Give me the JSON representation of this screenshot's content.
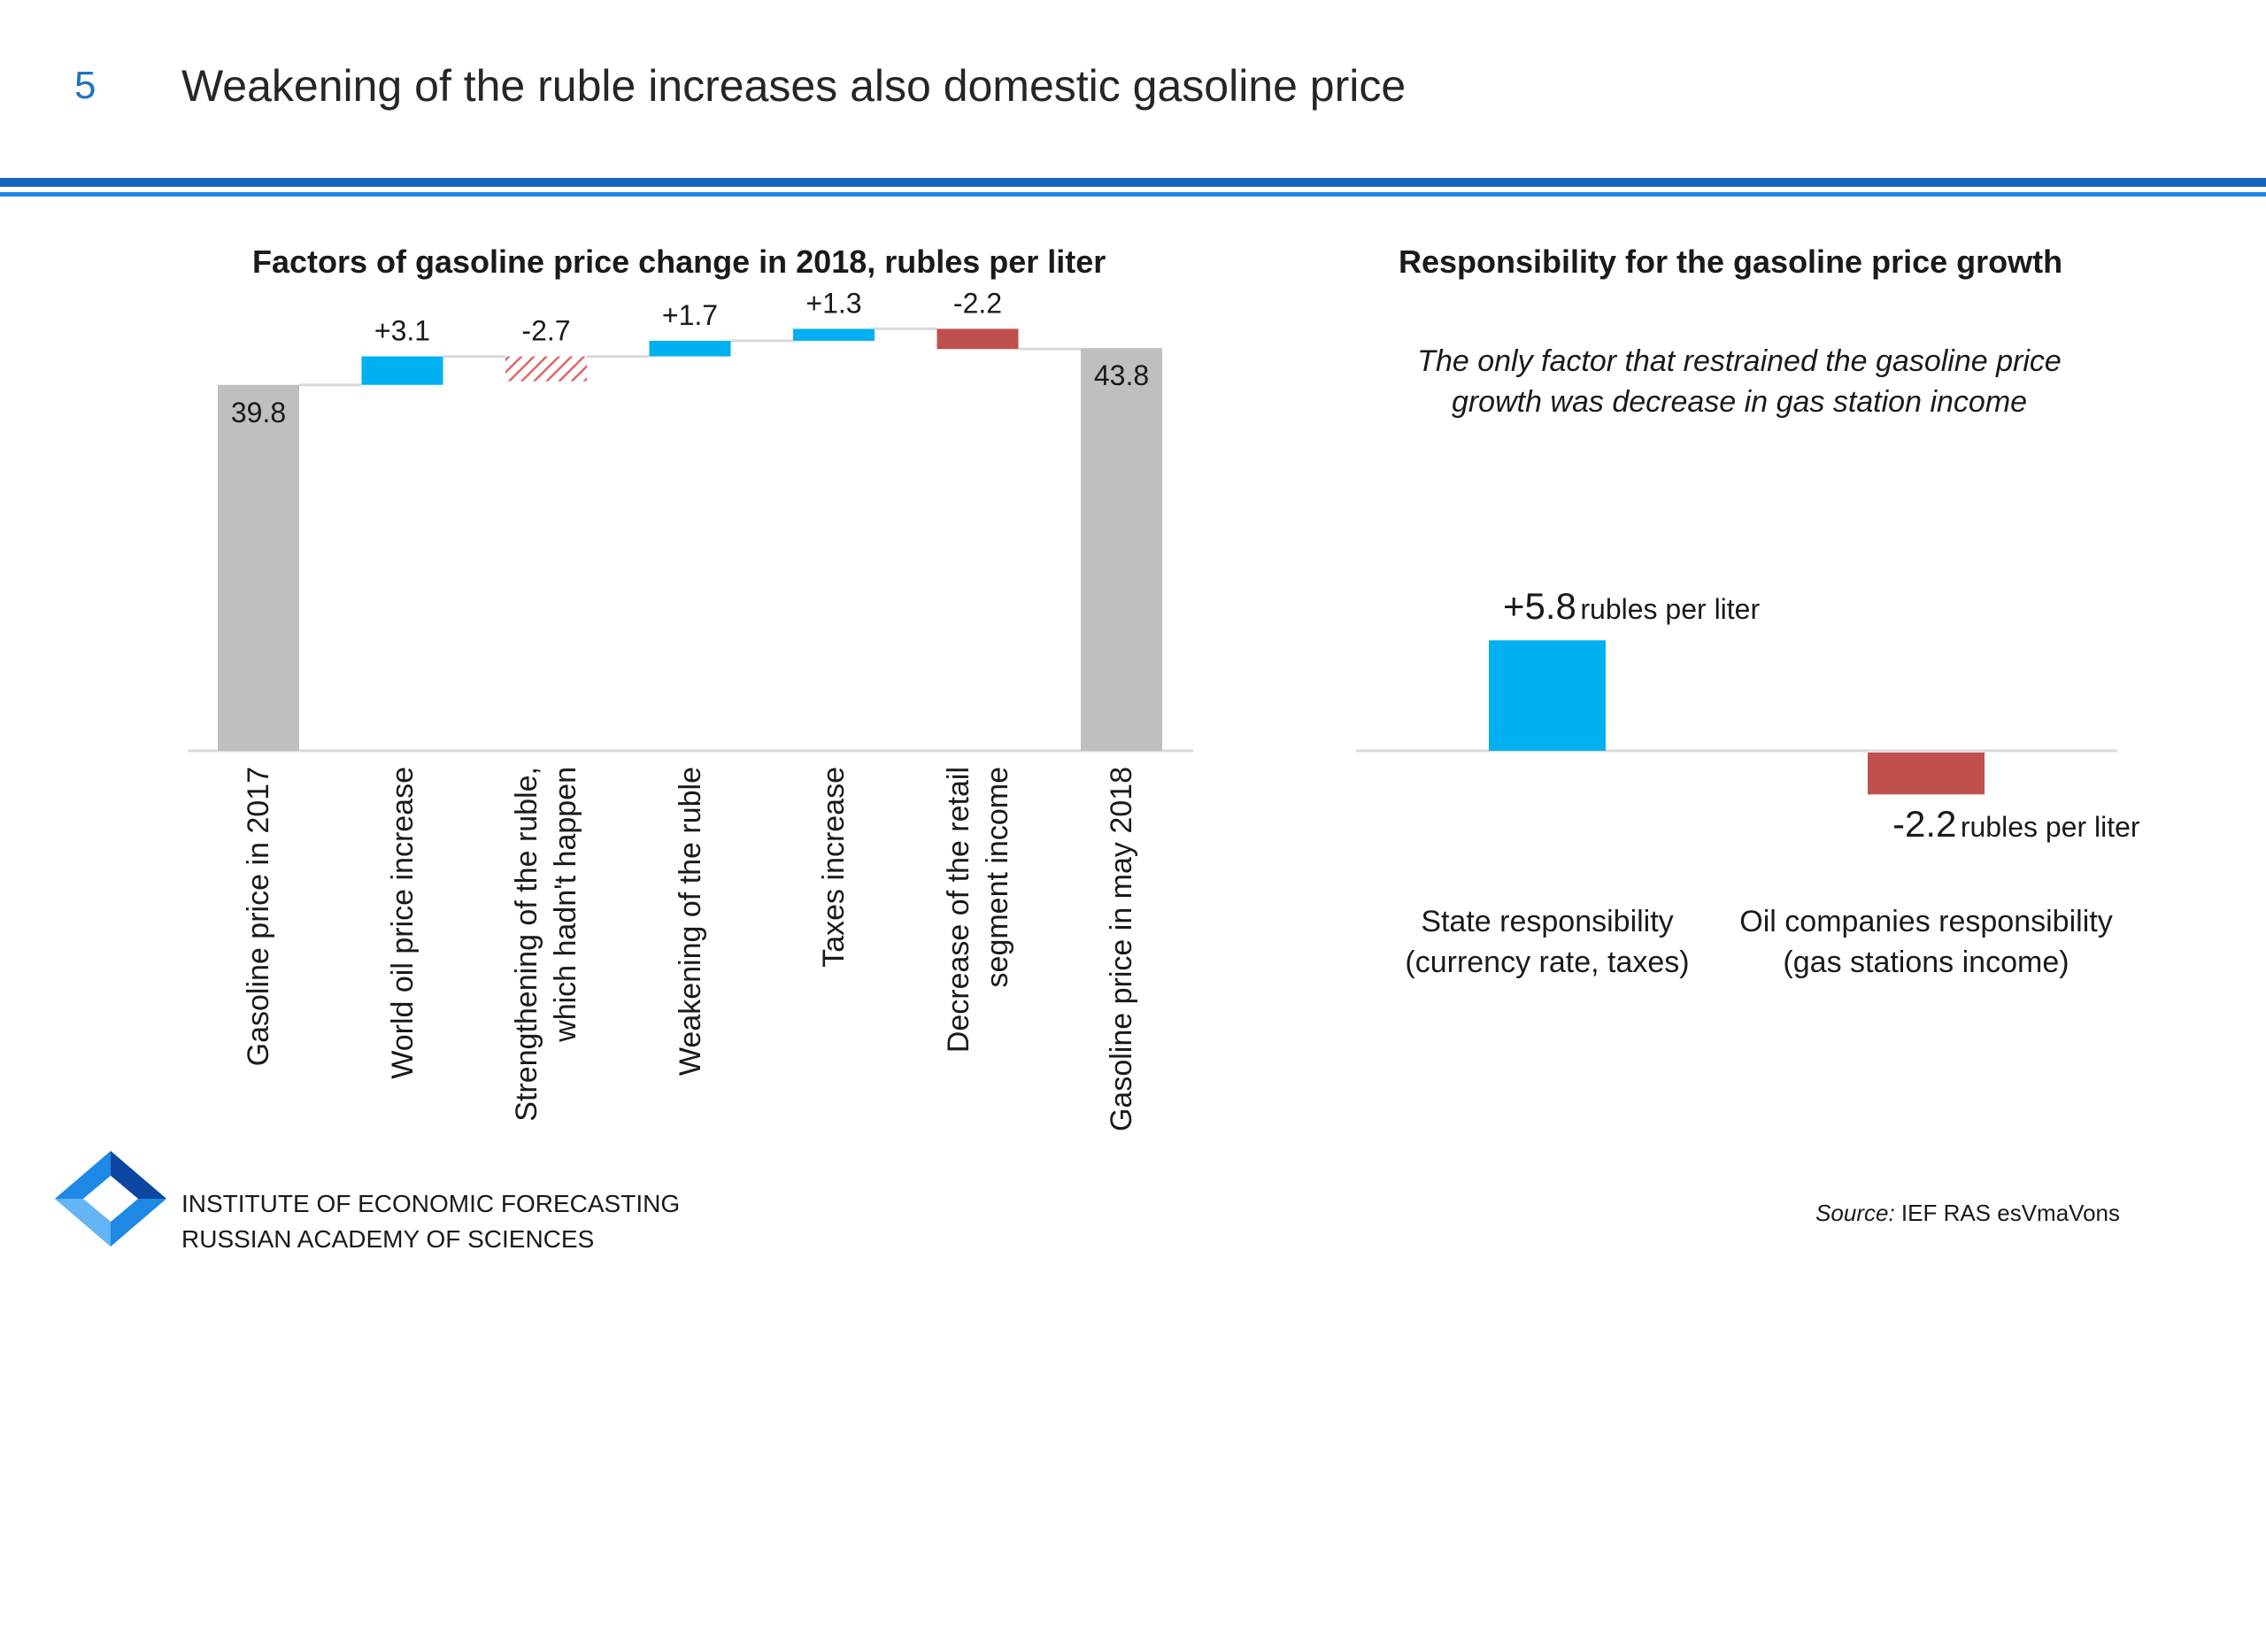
{
  "slide": {
    "number": "5",
    "title": "Weakening of the ruble increases also domestic gasoline price"
  },
  "left_panel": {
    "title": "Factors of gasoline price change in 2018, rubles per liter"
  },
  "right_panel": {
    "title": "Responsibility for the gasoline price growth",
    "note_line1": "The only factor that restrained the gasoline price",
    "note_line2": "growth was decrease in gas station income"
  },
  "colors": {
    "total": "#bfbfbf",
    "increase": "#00b0f0",
    "decrease": "#c0504d",
    "hypothetical": "#e06666",
    "axis": "#d9d9d9",
    "title_rule": "#1565c0",
    "slide_number": "#1e73be"
  },
  "chart_data": [
    {
      "type": "waterfall",
      "title": "Factors of gasoline price change in 2018, rubles per liter",
      "categories": [
        "Gasoline price in 2017",
        "World oil price increase",
        "Strengthening of the ruble, which hadn't happen",
        "Weakening of the ruble",
        "Taxes increase",
        "Decrease of the retail segment income",
        "Gasoline price in may 2018"
      ],
      "values": [
        39.8,
        3.1,
        -2.7,
        1.7,
        1.3,
        -2.2,
        43.8
      ],
      "labels": [
        "39.8",
        "+3.1",
        "-2.7",
        "+1.7",
        "+1.3",
        "-2.2",
        "43.8"
      ],
      "bar_kinds": [
        "total",
        "increase",
        "hypothetical",
        "increase",
        "increase",
        "decrease",
        "total"
      ],
      "ylim": [
        0,
        47
      ],
      "grid": false,
      "legend": "none"
    },
    {
      "type": "bar",
      "title": "Responsibility for the gasoline price growth",
      "categories": [
        "State responsibility (currency rate, taxes)",
        "Oil companies responsibility (gas stations income)"
      ],
      "values": [
        5.8,
        -2.2
      ],
      "labels": [
        "+5.8",
        "-2.2"
      ],
      "unit": "rubles per liter",
      "ylim": [
        -3,
        10
      ],
      "grid": false,
      "legend": "none"
    }
  ],
  "waterfall_categories": [
    {
      "line1": "Gasoline price in 2017",
      "line2": ""
    },
    {
      "line1": "World oil price increase",
      "line2": ""
    },
    {
      "line1": "Strengthening of the ruble,",
      "line2": "which hadn't happen"
    },
    {
      "line1": "Weakening of the ruble",
      "line2": ""
    },
    {
      "line1": "Taxes increase",
      "line2": ""
    },
    {
      "line1": "Decrease of the retail",
      "line2": "segment income"
    },
    {
      "line1": "Gasoline price in may 2018",
      "line2": ""
    }
  ],
  "responsibility": [
    {
      "value": "+5.8",
      "unit": "rubles per liter",
      "label_line1": "State responsibility",
      "label_line2": "(currency rate, taxes)"
    },
    {
      "value": "-2.2",
      "unit": "rubles per liter",
      "label_line1": "Oil companies responsibility",
      "label_line2": "(gas stations income)"
    }
  ],
  "footer": {
    "institute_line1": "INSTITUTE OF ECONOMIC FORECASTING",
    "institute_line2": "RUSSIAN ACADEMY OF SCIENCES",
    "source_label": "Source:",
    "source_text": " IEF RAS esVmaVons"
  }
}
